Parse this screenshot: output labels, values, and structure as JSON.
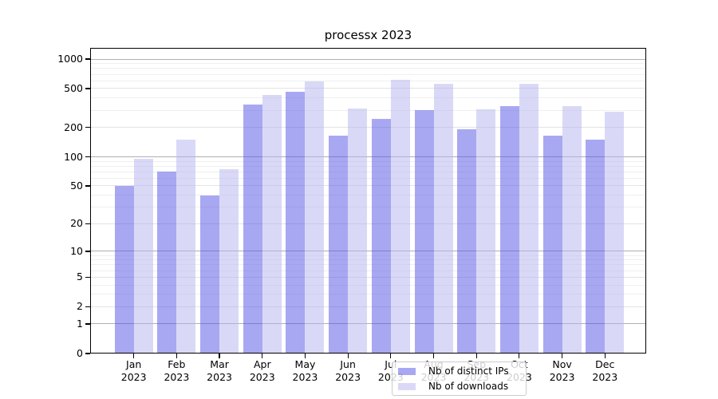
{
  "chart_data": {
    "type": "bar",
    "title": "processx 2023",
    "months": [
      "Jan",
      "Feb",
      "Mar",
      "Apr",
      "May",
      "Jun",
      "Jul",
      "Aug",
      "Sep",
      "Oct",
      "Nov",
      "Dec"
    ],
    "year": "2023",
    "series": [
      {
        "name": "Nb of distinct IPs",
        "color": "#5151e5",
        "alpha": 0.5,
        "values": [
          50,
          70,
          40,
          345,
          460,
          165,
          245,
          300,
          190,
          330,
          165,
          150
        ]
      },
      {
        "name": "Nb of downloads",
        "color": "#b3b3ef",
        "alpha": 0.5,
        "values": [
          95,
          150,
          75,
          430,
          595,
          310,
          610,
          555,
          305,
          555,
          330,
          290
        ]
      }
    ],
    "y_ticks": [
      0,
      1,
      2,
      5,
      10,
      20,
      50,
      100,
      200,
      500,
      1000
    ],
    "y_scale": "log1p",
    "ylim": [
      0,
      1300
    ],
    "grid": true,
    "legend_position": "lower center",
    "colors": {
      "grid_major": "#b0b0b0",
      "grid_labeled": "#e3e3e3",
      "grid_minor": "#efefef",
      "axis": "#000000",
      "background": "#ffffff"
    }
  }
}
